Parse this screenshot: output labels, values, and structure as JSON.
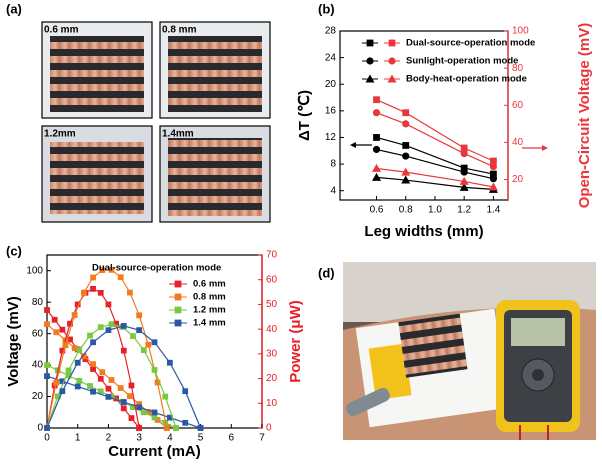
{
  "panels": [
    "(a)",
    "(b)",
    "(c)",
    "(d)"
  ],
  "photos": [
    "0.6 mm",
    "0.8 mm",
    "1.2mm",
    "1.4mm"
  ],
  "chart_data": [
    {
      "type": "line",
      "xlabel": "Leg widths (mm)",
      "ylabel": "ΔT (℃)",
      "y2label": "Open-Circuit Voltage (mV)",
      "y2color": "#e8383d",
      "x": [
        0.6,
        0.8,
        1.2,
        1.4
      ],
      "xlim": [
        0.35,
        1.5
      ],
      "xticks": [
        0.6,
        0.8,
        {
          "value": 1,
          "label": "1.0"
        },
        1.2,
        1.4
      ],
      "ylim": [
        2.6,
        28
      ],
      "yticks": [
        4,
        8,
        12,
        16,
        20,
        24,
        28
      ],
      "y2lim": [
        9,
        100
      ],
      "y2ticks": [
        20,
        40,
        60,
        80,
        100
      ],
      "legend": "upper right",
      "series": [
        {
          "name": "Dual-source-operation mode",
          "color": "#000000",
          "marker": "square",
          "values": [
            12,
            10.8,
            7.4,
            6.5
          ]
        },
        {
          "name": "Sunlight-operation mode",
          "color": "#000000",
          "marker": "circle",
          "values": [
            10.2,
            9.2,
            6.8,
            5.8
          ]
        },
        {
          "name": "Body-heat-operation mode",
          "color": "#000000",
          "marker": "triangle",
          "values": [
            6.0,
            5.6,
            4.5,
            4.2
          ]
        },
        {
          "color": "#e8383d",
          "marker": "square",
          "axis": "y2",
          "values": [
            63,
            56,
            37,
            30
          ]
        },
        {
          "color": "#e8383d",
          "marker": "circle",
          "axis": "y2",
          "values": [
            56,
            50,
            34,
            27
          ]
        },
        {
          "color": "#e8383d",
          "marker": "triangle",
          "axis": "y2",
          "values": [
            26,
            24,
            19,
            16
          ]
        }
      ]
    },
    {
      "type": "line",
      "xlabel": "Current (mA)",
      "ylabel": "Voltage (mV)",
      "y2label": "Power (μW)",
      "y2color": "#e8202a",
      "legend_title": "Dual-source-operation mode",
      "legend": "upper right",
      "xlim": [
        0,
        7
      ],
      "xticks": [
        0,
        1,
        2,
        3,
        4,
        5,
        6,
        7
      ],
      "ylim": [
        0,
        110
      ],
      "yticks": [
        0,
        20,
        40,
        60,
        80,
        100
      ],
      "y2lim": [
        0,
        70
      ],
      "y2ticks": [
        0,
        10,
        20,
        30,
        40,
        50,
        60,
        70
      ],
      "series": [
        {
          "name": "0.6 mm",
          "color": "#e8202a",
          "marker": "square",
          "x": [
            0,
            0.25,
            0.5,
            0.75,
            1,
            1.25,
            1.5,
            1.75,
            2,
            2.25,
            2.5,
            2.75,
            3
          ],
          "values": [
            75,
            68.8,
            62.5,
            56.3,
            50,
            43.8,
            37.5,
            31.3,
            25,
            18.8,
            12.5,
            6.3,
            0
          ]
        },
        {
          "name": "0.8 mm",
          "color": "#f47a20",
          "marker": "square",
          "x": [
            0,
            0.3,
            0.6,
            0.9,
            1.2,
            1.5,
            1.8,
            2.1,
            2.4,
            2.7,
            3,
            3.3,
            3.6,
            3.9
          ],
          "values": [
            66,
            60.9,
            55.8,
            50.8,
            45.7,
            40.6,
            35.5,
            30.5,
            25.4,
            20.3,
            15.2,
            10.2,
            5.1,
            0
          ]
        },
        {
          "name": "1.2 mm",
          "color": "#7ac943",
          "marker": "square",
          "x": [
            0,
            0.35,
            0.7,
            1.05,
            1.4,
            1.75,
            2.1,
            2.45,
            2.8,
            3.15,
            3.5,
            3.85,
            4.2
          ],
          "values": [
            40,
            36.7,
            33.3,
            30,
            26.7,
            23.3,
            20,
            16.7,
            13.3,
            10,
            6.7,
            3.3,
            0
          ]
        },
        {
          "name": "1.4 mm",
          "color": "#2b58a6",
          "marker": "square",
          "x": [
            0,
            0.5,
            1,
            1.5,
            2,
            2.5,
            3,
            3.5,
            4,
            4.5,
            5
          ],
          "values": [
            33,
            29.7,
            26.4,
            23.1,
            19.8,
            16.5,
            13.2,
            9.9,
            6.6,
            3.3,
            0
          ]
        },
        {
          "color": "#e8202a",
          "marker": "square",
          "axis": "y2",
          "x": [
            0,
            0.25,
            0.5,
            0.75,
            1,
            1.25,
            1.5,
            1.75,
            2,
            2.25,
            2.5,
            2.75,
            3
          ],
          "values": [
            0,
            17.2,
            31.3,
            42.2,
            50,
            54.7,
            56.3,
            54.7,
            50,
            42.2,
            31.3,
            17.2,
            0
          ]
        },
        {
          "color": "#f47a20",
          "marker": "square",
          "axis": "y2",
          "x": [
            0,
            0.3,
            0.6,
            0.9,
            1.2,
            1.5,
            1.8,
            2.1,
            2.4,
            2.7,
            3,
            3.3,
            3.6,
            3.9
          ],
          "values": [
            0,
            18.3,
            33.5,
            45.7,
            54.8,
            60.9,
            63.9,
            64.0,
            61.0,
            54.8,
            45.6,
            33.7,
            18.4,
            0
          ]
        },
        {
          "color": "#7ac943",
          "marker": "square",
          "axis": "y2",
          "x": [
            0,
            0.35,
            0.7,
            1.05,
            1.4,
            1.75,
            2.1,
            2.45,
            2.8,
            3.15,
            3.5,
            3.85,
            4.2
          ],
          "values": [
            0,
            12.8,
            23.3,
            31.5,
            37.4,
            40.8,
            42,
            40.9,
            37.2,
            31.5,
            23.5,
            12.7,
            0
          ]
        },
        {
          "color": "#2b58a6",
          "marker": "square",
          "axis": "y2",
          "x": [
            0,
            0.5,
            1,
            1.5,
            2,
            2.5,
            3,
            3.5,
            4,
            4.5,
            5
          ],
          "values": [
            0,
            14.9,
            26.4,
            34.7,
            39.6,
            41.3,
            39.6,
            34.7,
            26.4,
            14.9,
            0
          ]
        }
      ]
    }
  ]
}
